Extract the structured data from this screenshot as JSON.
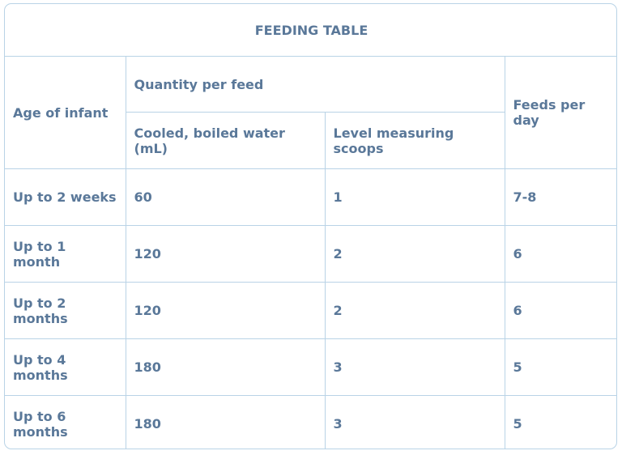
{
  "table": {
    "title": "FEEDING TABLE",
    "headers": {
      "age": "Age of infant",
      "quantity_group": "Quantity per feed",
      "water": "Cooled, boiled water (mL)",
      "scoops": "Level measuring scoops",
      "feeds": "Feeds per day"
    },
    "rows": [
      {
        "age": "Up to 2 weeks",
        "water": "60",
        "scoops": "1",
        "feeds": "7-8"
      },
      {
        "age": "Up to 1 month",
        "water": "120",
        "scoops": "2",
        "feeds": "6"
      },
      {
        "age": "Up to 2 months",
        "water": "120",
        "scoops": "2",
        "feeds": "6"
      },
      {
        "age": "Up to 4 months",
        "water": "180",
        "scoops": "3",
        "feeds": "5"
      },
      {
        "age": "Up to 6 months",
        "water": "180",
        "scoops": "3",
        "feeds": "5"
      }
    ]
  },
  "colors": {
    "text": "#5a7899",
    "border": "#b9d3e6"
  }
}
